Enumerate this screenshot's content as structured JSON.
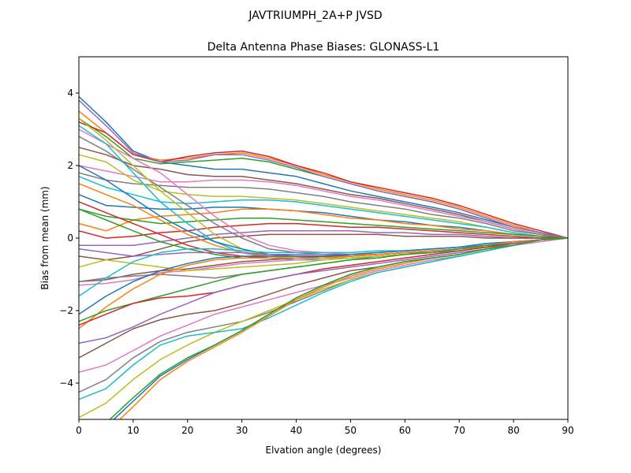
{
  "suptitle": "JAVTRIUMPH_2A+P JVSD",
  "chart_data": {
    "type": "line",
    "title": "Delta Antenna Phase Biases: GLONASS-L1",
    "xlabel": "Elvation angle (degrees)",
    "ylabel": "Bias from mean (mm)",
    "xlim": [
      0,
      90
    ],
    "ylim": [
      -5,
      5
    ],
    "xticks": [
      0,
      10,
      20,
      30,
      40,
      50,
      60,
      70,
      80,
      90
    ],
    "yticks": [
      -4,
      -2,
      0,
      2,
      4
    ],
    "xtick_labels": [
      "0",
      "10",
      "20",
      "30",
      "40",
      "50",
      "60",
      "70",
      "80",
      "90"
    ],
    "ytick_labels": [
      "−4",
      "−2",
      "0",
      "2",
      "4"
    ],
    "grid": false,
    "legend": "none",
    "x": [
      0,
      5,
      10,
      15,
      20,
      25,
      30,
      35,
      40,
      45,
      50,
      55,
      60,
      65,
      70,
      75,
      80,
      85,
      90
    ],
    "colors": [
      "#1f77b4",
      "#ff7f0e",
      "#2ca02c",
      "#d62728",
      "#9467bd",
      "#8c564b",
      "#e377c2",
      "#7f7f7f",
      "#bcbd22",
      "#17becf"
    ],
    "series": [
      {
        "values": [
          3.9,
          3.2,
          2.4,
          2.1,
          2.0,
          1.9,
          1.9,
          1.8,
          1.7,
          1.5,
          1.3,
          1.15,
          1.0,
          0.85,
          0.7,
          0.5,
          0.3,
          0.15,
          0.0
        ]
      },
      {
        "values": [
          3.5,
          2.9,
          2.3,
          2.15,
          2.2,
          2.3,
          2.35,
          2.2,
          2.0,
          1.75,
          1.55,
          1.35,
          1.2,
          1.05,
          0.85,
          0.6,
          0.35,
          0.15,
          0.0
        ]
      },
      {
        "values": [
          3.3,
          2.8,
          2.2,
          2.05,
          2.1,
          2.15,
          2.2,
          2.1,
          1.9,
          1.7,
          1.5,
          1.3,
          1.15,
          1.0,
          0.8,
          0.55,
          0.3,
          0.15,
          0.0
        ]
      },
      {
        "values": [
          3.2,
          2.9,
          2.3,
          2.1,
          2.25,
          2.35,
          2.4,
          2.25,
          2.0,
          1.8,
          1.55,
          1.4,
          1.25,
          1.1,
          0.9,
          0.65,
          0.4,
          0.2,
          0.0
        ]
      },
      {
        "values": [
          3.8,
          3.1,
          2.35,
          2.1,
          2.15,
          2.3,
          2.3,
          2.15,
          1.95,
          1.7,
          1.5,
          1.3,
          1.15,
          1.0,
          0.8,
          0.55,
          0.3,
          0.15,
          0.0
        ]
      },
      {
        "values": [
          2.5,
          2.3,
          2.0,
          1.9,
          1.75,
          1.7,
          1.7,
          1.6,
          1.5,
          1.35,
          1.2,
          1.1,
          0.95,
          0.8,
          0.65,
          0.45,
          0.25,
          0.1,
          0.0
        ]
      },
      {
        "values": [
          2.0,
          1.85,
          1.7,
          1.55,
          1.55,
          1.6,
          1.6,
          1.55,
          1.45,
          1.3,
          1.15,
          1.05,
          0.9,
          0.75,
          0.6,
          0.45,
          0.25,
          0.1,
          0.0
        ]
      },
      {
        "values": [
          1.8,
          1.6,
          1.5,
          1.45,
          1.4,
          1.4,
          1.4,
          1.35,
          1.25,
          1.15,
          1.0,
          0.9,
          0.8,
          0.65,
          0.55,
          0.4,
          0.2,
          0.1,
          0.0
        ]
      },
      {
        "values": [
          2.3,
          2.1,
          1.6,
          1.3,
          1.2,
          1.15,
          1.15,
          1.1,
          1.05,
          0.95,
          0.85,
          0.75,
          0.65,
          0.55,
          0.45,
          0.3,
          0.15,
          0.05,
          0.0
        ]
      },
      {
        "values": [
          1.7,
          1.4,
          1.2,
          1.0,
          0.95,
          1.0,
          1.05,
          1.05,
          1.0,
          0.9,
          0.8,
          0.7,
          0.6,
          0.5,
          0.4,
          0.3,
          0.15,
          0.05,
          0.0
        ]
      },
      {
        "values": [
          1.2,
          0.9,
          0.85,
          0.8,
          0.8,
          0.85,
          0.85,
          0.8,
          0.75,
          0.7,
          0.6,
          0.5,
          0.45,
          0.35,
          0.3,
          0.2,
          0.1,
          0.05,
          0.0
        ]
      },
      {
        "values": [
          0.4,
          0.2,
          0.5,
          0.6,
          0.65,
          0.7,
          0.8,
          0.8,
          0.75,
          0.65,
          0.55,
          0.5,
          0.4,
          0.35,
          0.25,
          0.2,
          0.1,
          0.05,
          0.0
        ]
      },
      {
        "values": [
          0.8,
          0.6,
          0.5,
          0.4,
          0.45,
          0.5,
          0.55,
          0.55,
          0.5,
          0.45,
          0.4,
          0.35,
          0.3,
          0.25,
          0.2,
          0.15,
          0.1,
          0.05,
          0.0
        ]
      },
      {
        "values": [
          0.2,
          0.0,
          0.05,
          0.15,
          0.2,
          0.3,
          0.35,
          0.4,
          0.4,
          0.35,
          0.3,
          0.3,
          0.25,
          0.2,
          0.15,
          0.1,
          0.05,
          0.0,
          0.0
        ]
      },
      {
        "values": [
          -0.2,
          -0.2,
          -0.2,
          -0.1,
          0.0,
          0.1,
          0.15,
          0.2,
          0.2,
          0.2,
          0.2,
          0.15,
          0.15,
          0.1,
          0.1,
          0.05,
          0.0,
          0.0,
          0.0
        ]
      },
      {
        "values": [
          -0.5,
          -0.6,
          -0.5,
          -0.3,
          -0.1,
          0.0,
          0.05,
          0.1,
          0.1,
          0.1,
          0.1,
          0.1,
          0.05,
          0.05,
          0.05,
          0.0,
          0.0,
          0.0,
          0.0
        ]
      },
      {
        "values": [
          3.0,
          2.6,
          2.2,
          1.8,
          1.2,
          0.6,
          0.1,
          -0.2,
          -0.35,
          -0.4,
          -0.45,
          -0.45,
          -0.4,
          -0.35,
          -0.3,
          -0.25,
          -0.15,
          -0.05,
          0.0
        ]
      },
      {
        "values": [
          2.8,
          2.4,
          1.9,
          1.4,
          0.9,
          0.4,
          0.0,
          -0.3,
          -0.4,
          -0.45,
          -0.5,
          -0.45,
          -0.4,
          -0.35,
          -0.3,
          -0.2,
          -0.15,
          -0.05,
          0.0
        ]
      },
      {
        "values": [
          3.3,
          2.7,
          2.0,
          1.3,
          0.7,
          0.1,
          -0.3,
          -0.5,
          -0.55,
          -0.55,
          -0.55,
          -0.5,
          -0.45,
          -0.4,
          -0.3,
          -0.25,
          -0.15,
          -0.05,
          0.0
        ]
      },
      {
        "values": [
          3.1,
          2.6,
          1.8,
          1.0,
          0.4,
          -0.1,
          -0.4,
          -0.55,
          -0.6,
          -0.6,
          -0.55,
          -0.5,
          -0.45,
          -0.4,
          -0.35,
          -0.25,
          -0.15,
          -0.05,
          0.0
        ]
      },
      {
        "values": [
          2.0,
          1.6,
          1.1,
          0.6,
          0.2,
          -0.1,
          -0.3,
          -0.45,
          -0.5,
          -0.5,
          -0.5,
          -0.45,
          -0.4,
          -0.35,
          -0.3,
          -0.2,
          -0.15,
          -0.05,
          0.0
        ]
      },
      {
        "values": [
          1.5,
          1.2,
          0.9,
          0.5,
          0.1,
          -0.2,
          -0.4,
          -0.5,
          -0.5,
          -0.5,
          -0.45,
          -0.45,
          -0.4,
          -0.35,
          -0.3,
          -0.2,
          -0.1,
          -0.05,
          0.0
        ]
      },
      {
        "values": [
          0.8,
          0.5,
          0.2,
          -0.1,
          -0.3,
          -0.45,
          -0.55,
          -0.55,
          -0.55,
          -0.5,
          -0.5,
          -0.45,
          -0.4,
          -0.35,
          -0.3,
          -0.2,
          -0.1,
          -0.05,
          0.0
        ]
      },
      {
        "values": [
          1.0,
          0.7,
          0.4,
          0.1,
          -0.2,
          -0.4,
          -0.5,
          -0.55,
          -0.55,
          -0.55,
          -0.5,
          -0.45,
          -0.4,
          -0.35,
          -0.3,
          -0.2,
          -0.15,
          -0.05,
          0.0
        ]
      },
      {
        "values": [
          -0.3,
          -0.4,
          -0.5,
          -0.45,
          -0.4,
          -0.4,
          -0.4,
          -0.45,
          -0.45,
          -0.45,
          -0.45,
          -0.4,
          -0.35,
          -0.3,
          -0.25,
          -0.2,
          -0.1,
          -0.05,
          0.0
        ]
      },
      {
        "values": [
          -1.2,
          -1.15,
          -1.0,
          -0.9,
          -0.85,
          -0.75,
          -0.65,
          -0.6,
          -0.55,
          -0.5,
          -0.5,
          -0.45,
          -0.4,
          -0.35,
          -0.3,
          -0.2,
          -0.1,
          -0.05,
          0.0
        ]
      },
      {
        "values": [
          -1.3,
          -1.25,
          -1.15,
          -0.95,
          -0.9,
          -0.8,
          -0.7,
          -0.65,
          -0.6,
          -0.55,
          -0.5,
          -0.45,
          -0.4,
          -0.35,
          -0.3,
          -0.2,
          -0.1,
          -0.05,
          0.0
        ]
      },
      {
        "values": [
          -1.2,
          -1.1,
          -1.05,
          -1.0,
          -1.05,
          -1.1,
          -1.0,
          -0.9,
          -0.8,
          -0.7,
          -0.6,
          -0.5,
          -0.45,
          -0.35,
          -0.3,
          -0.2,
          -0.1,
          -0.05,
          0.0
        ]
      },
      {
        "values": [
          -0.8,
          -0.6,
          -0.7,
          -0.8,
          -0.9,
          -0.85,
          -0.8,
          -0.75,
          -0.7,
          -0.6,
          -0.55,
          -0.5,
          -0.45,
          -0.4,
          -0.3,
          -0.2,
          -0.1,
          -0.05,
          0.0
        ]
      },
      {
        "values": [
          -1.6,
          -1.1,
          -0.65,
          -0.4,
          -0.3,
          -0.3,
          -0.35,
          -0.4,
          -0.4,
          -0.4,
          -0.4,
          -0.35,
          -0.35,
          -0.3,
          -0.25,
          -0.15,
          -0.1,
          -0.05,
          0.0
        ]
      },
      {
        "values": [
          -2.1,
          -1.6,
          -1.2,
          -0.9,
          -0.7,
          -0.55,
          -0.5,
          -0.5,
          -0.5,
          -0.5,
          -0.45,
          -0.4,
          -0.35,
          -0.3,
          -0.25,
          -0.15,
          -0.1,
          -0.05,
          0.0
        ]
      },
      {
        "values": [
          -2.5,
          -1.9,
          -1.4,
          -1.0,
          -0.75,
          -0.6,
          -0.55,
          -0.55,
          -0.55,
          -0.55,
          -0.5,
          -0.45,
          -0.4,
          -0.35,
          -0.3,
          -0.2,
          -0.1,
          -0.05,
          0.0
        ]
      },
      {
        "values": [
          -2.3,
          -2.0,
          -1.8,
          -1.6,
          -1.4,
          -1.2,
          -1.0,
          -0.9,
          -0.8,
          -0.7,
          -0.6,
          -0.55,
          -0.45,
          -0.4,
          -0.3,
          -0.2,
          -0.15,
          -0.05,
          0.0
        ]
      },
      {
        "values": [
          -2.4,
          -2.1,
          -1.8,
          -1.65,
          -1.6,
          -1.5,
          -1.3,
          -1.15,
          -1.0,
          -0.85,
          -0.75,
          -0.65,
          -0.55,
          -0.45,
          -0.35,
          -0.25,
          -0.15,
          -0.05,
          0.0
        ]
      },
      {
        "values": [
          -2.9,
          -2.75,
          -2.45,
          -2.1,
          -1.8,
          -1.5,
          -1.3,
          -1.15,
          -1.0,
          -0.9,
          -0.8,
          -0.7,
          -0.6,
          -0.5,
          -0.4,
          -0.3,
          -0.15,
          -0.05,
          0.0
        ]
      },
      {
        "values": [
          -3.3,
          -2.9,
          -2.5,
          -2.25,
          -2.1,
          -2.0,
          -1.8,
          -1.55,
          -1.3,
          -1.1,
          -0.9,
          -0.8,
          -0.65,
          -0.55,
          -0.45,
          -0.3,
          -0.2,
          -0.05,
          0.0
        ]
      },
      {
        "values": [
          -3.7,
          -3.5,
          -3.1,
          -2.7,
          -2.4,
          -2.1,
          -1.9,
          -1.7,
          -1.5,
          -1.3,
          -1.1,
          -0.9,
          -0.75,
          -0.6,
          -0.5,
          -0.35,
          -0.2,
          -0.1,
          0.0
        ]
      },
      {
        "values": [
          -4.25,
          -3.9,
          -3.3,
          -2.85,
          -2.6,
          -2.45,
          -2.3,
          -2.05,
          -1.75,
          -1.45,
          -1.15,
          -0.95,
          -0.8,
          -0.65,
          -0.5,
          -0.35,
          -0.2,
          -0.05,
          0.0
        ]
      },
      {
        "values": [
          -4.95,
          -4.55,
          -3.9,
          -3.35,
          -2.95,
          -2.6,
          -2.3,
          -2.0,
          -1.7,
          -1.4,
          -1.15,
          -0.95,
          -0.8,
          -0.65,
          -0.5,
          -0.35,
          -0.2,
          -0.05,
          0.0
        ]
      },
      {
        "values": [
          -4.45,
          -4.15,
          -3.5,
          -2.95,
          -2.7,
          -2.6,
          -2.5,
          -2.2,
          -1.85,
          -1.5,
          -1.2,
          -0.95,
          -0.8,
          -0.65,
          -0.5,
          -0.35,
          -0.2,
          -0.05,
          0.0
        ]
      },
      {
        "values": [
          -5.6,
          -5.2,
          -4.5,
          -3.8,
          -3.35,
          -2.95,
          -2.55,
          -2.1,
          -1.65,
          -1.3,
          -1.0,
          -0.8,
          -0.65,
          -0.55,
          -0.45,
          -0.3,
          -0.2,
          -0.05,
          0.0
        ]
      },
      {
        "values": [
          -5.7,
          -5.35,
          -4.65,
          -3.9,
          -3.4,
          -3.0,
          -2.6,
          -2.15,
          -1.7,
          -1.35,
          -1.05,
          -0.85,
          -0.7,
          -0.55,
          -0.45,
          -0.3,
          -0.2,
          -0.05,
          0.0
        ]
      },
      {
        "values": [
          -5.5,
          -5.1,
          -4.4,
          -3.75,
          -3.3,
          -2.95,
          -2.55,
          -2.1,
          -1.65,
          -1.3,
          -1.0,
          -0.8,
          -0.65,
          -0.55,
          -0.45,
          -0.3,
          -0.2,
          -0.05,
          0.0
        ]
      }
    ]
  }
}
